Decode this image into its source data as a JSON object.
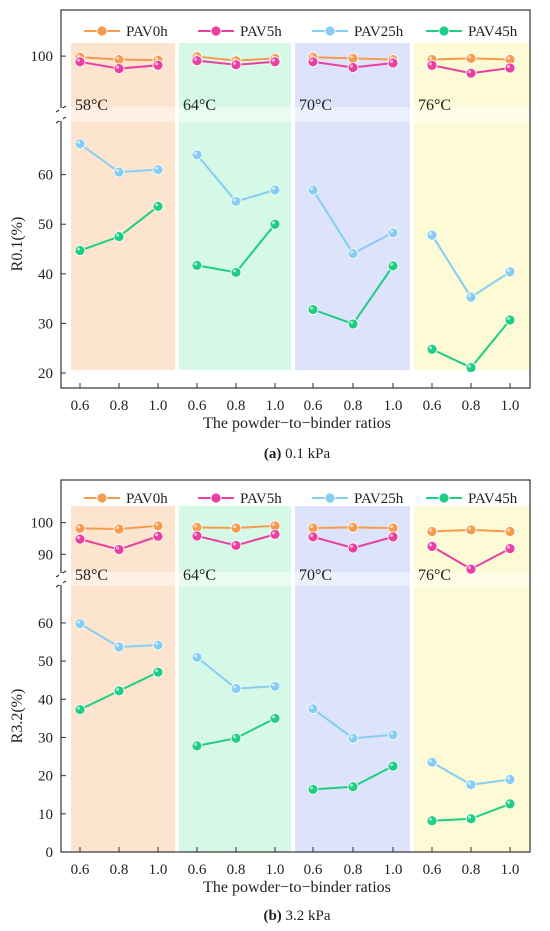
{
  "legend": [
    {
      "name": "PAV0h",
      "color": "#f59b4e"
    },
    {
      "name": "PAV5h",
      "color": "#ea3fa0"
    },
    {
      "name": "PAV25h",
      "color": "#87cdf2"
    },
    {
      "name": "PAV45h",
      "color": "#1fcd85"
    }
  ],
  "temperatures": [
    "58°C",
    "64°C",
    "70°C",
    "76°C"
  ],
  "panel_colors": [
    "#fde4cf",
    "#d6f9e7",
    "#dde3fb",
    "#fdfbd6"
  ],
  "chart_data": [
    {
      "type": "line",
      "title": "",
      "caption_letter": "(a)",
      "caption_text": " 0.1 kPa",
      "xlabel": "The powder−to−binder ratios",
      "ylabel": "R0.1(%)",
      "categories": [
        "0.6",
        "0.8",
        "1.0"
      ],
      "upper_ticks": [
        "100"
      ],
      "lower_ticks": [
        "20",
        "30",
        "40",
        "50",
        "60"
      ],
      "ylim_upper": [
        86,
        104
      ],
      "ylim_lower": [
        19,
        69
      ],
      "groups": [
        {
          "temperature": "58°C",
          "series": [
            {
              "name": "PAV0h",
              "values": [
                99.5,
                98.5,
                98.2
              ]
            },
            {
              "name": "PAV5h",
              "values": [
                97.5,
                94.5,
                96.0
              ]
            },
            {
              "name": "PAV25h",
              "values": [
                66.2,
                60.5,
                61.0
              ]
            },
            {
              "name": "PAV45h",
              "values": [
                44.7,
                47.5,
                53.6
              ]
            }
          ]
        },
        {
          "temperature": "64°C",
          "series": [
            {
              "name": "PAV0h",
              "values": [
                99.8,
                98.0,
                99.0
              ]
            },
            {
              "name": "PAV5h",
              "values": [
                98.0,
                96.2,
                97.5
              ]
            },
            {
              "name": "PAV25h",
              "values": [
                64.0,
                54.6,
                56.9
              ]
            },
            {
              "name": "PAV45h",
              "values": [
                41.7,
                40.3,
                50.0
              ]
            }
          ]
        },
        {
          "temperature": "70°C",
          "series": [
            {
              "name": "PAV0h",
              "values": [
                99.5,
                99.0,
                98.5
              ]
            },
            {
              "name": "PAV5h",
              "values": [
                97.5,
                95.0,
                97.0
              ]
            },
            {
              "name": "PAV25h",
              "values": [
                56.9,
                44.1,
                48.3
              ]
            },
            {
              "name": "PAV45h",
              "values": [
                32.8,
                29.9,
                41.6
              ]
            }
          ]
        },
        {
          "temperature": "76°C",
          "series": [
            {
              "name": "PAV0h",
              "values": [
                98.5,
                99.0,
                98.5
              ]
            },
            {
              "name": "PAV5h",
              "values": [
                96.0,
                92.5,
                94.8
              ]
            },
            {
              "name": "PAV25h",
              "values": [
                47.8,
                35.3,
                40.4
              ]
            },
            {
              "name": "PAV45h",
              "values": [
                24.8,
                21.1,
                30.7
              ]
            }
          ]
        }
      ]
    },
    {
      "type": "line",
      "title": "",
      "caption_letter": "(b)",
      "caption_text": " 3.2 kPa",
      "xlabel": "The powder−to−binder ratios",
      "ylabel": "R3.2(%)",
      "categories": [
        "0.6",
        "0.8",
        "1.0"
      ],
      "upper_ticks": [
        "90",
        "100"
      ],
      "lower_ticks": [
        "0",
        "10",
        "20",
        "30",
        "40",
        "50",
        "60"
      ],
      "ylim_upper": [
        82.5,
        104
      ],
      "ylim_lower": [
        0,
        66
      ],
      "groups": [
        {
          "temperature": "58°C",
          "series": [
            {
              "name": "PAV0h",
              "values": [
                98.2,
                98.0,
                99.0
              ]
            },
            {
              "name": "PAV5h",
              "values": [
                94.8,
                91.5,
                95.7
              ]
            },
            {
              "name": "PAV25h",
              "values": [
                59.8,
                53.7,
                54.2
              ]
            },
            {
              "name": "PAV45h",
              "values": [
                37.3,
                42.2,
                47.1
              ]
            }
          ]
        },
        {
          "temperature": "64°C",
          "series": [
            {
              "name": "PAV0h",
              "values": [
                98.5,
                98.3,
                99.0
              ]
            },
            {
              "name": "PAV5h",
              "values": [
                95.8,
                92.8,
                96.3
              ]
            },
            {
              "name": "PAV25h",
              "values": [
                51.0,
                42.8,
                43.4
              ]
            },
            {
              "name": "PAV45h",
              "values": [
                27.8,
                29.8,
                35.0
              ]
            }
          ]
        },
        {
          "temperature": "70°C",
          "series": [
            {
              "name": "PAV0h",
              "values": [
                98.3,
                98.5,
                98.3
              ]
            },
            {
              "name": "PAV5h",
              "values": [
                95.5,
                92.0,
                95.5
              ]
            },
            {
              "name": "PAV25h",
              "values": [
                37.5,
                29.8,
                30.7
              ]
            },
            {
              "name": "PAV45h",
              "values": [
                16.4,
                17.1,
                22.5
              ]
            }
          ]
        },
        {
          "temperature": "76°C",
          "series": [
            {
              "name": "PAV0h",
              "values": [
                97.2,
                97.7,
                97.2
              ]
            },
            {
              "name": "PAV5h",
              "values": [
                92.5,
                85.3,
                91.8
              ]
            },
            {
              "name": "PAV25h",
              "values": [
                23.5,
                17.6,
                19.0
              ]
            },
            {
              "name": "PAV45h",
              "values": [
                8.2,
                8.7,
                12.6
              ]
            }
          ]
        }
      ]
    }
  ]
}
